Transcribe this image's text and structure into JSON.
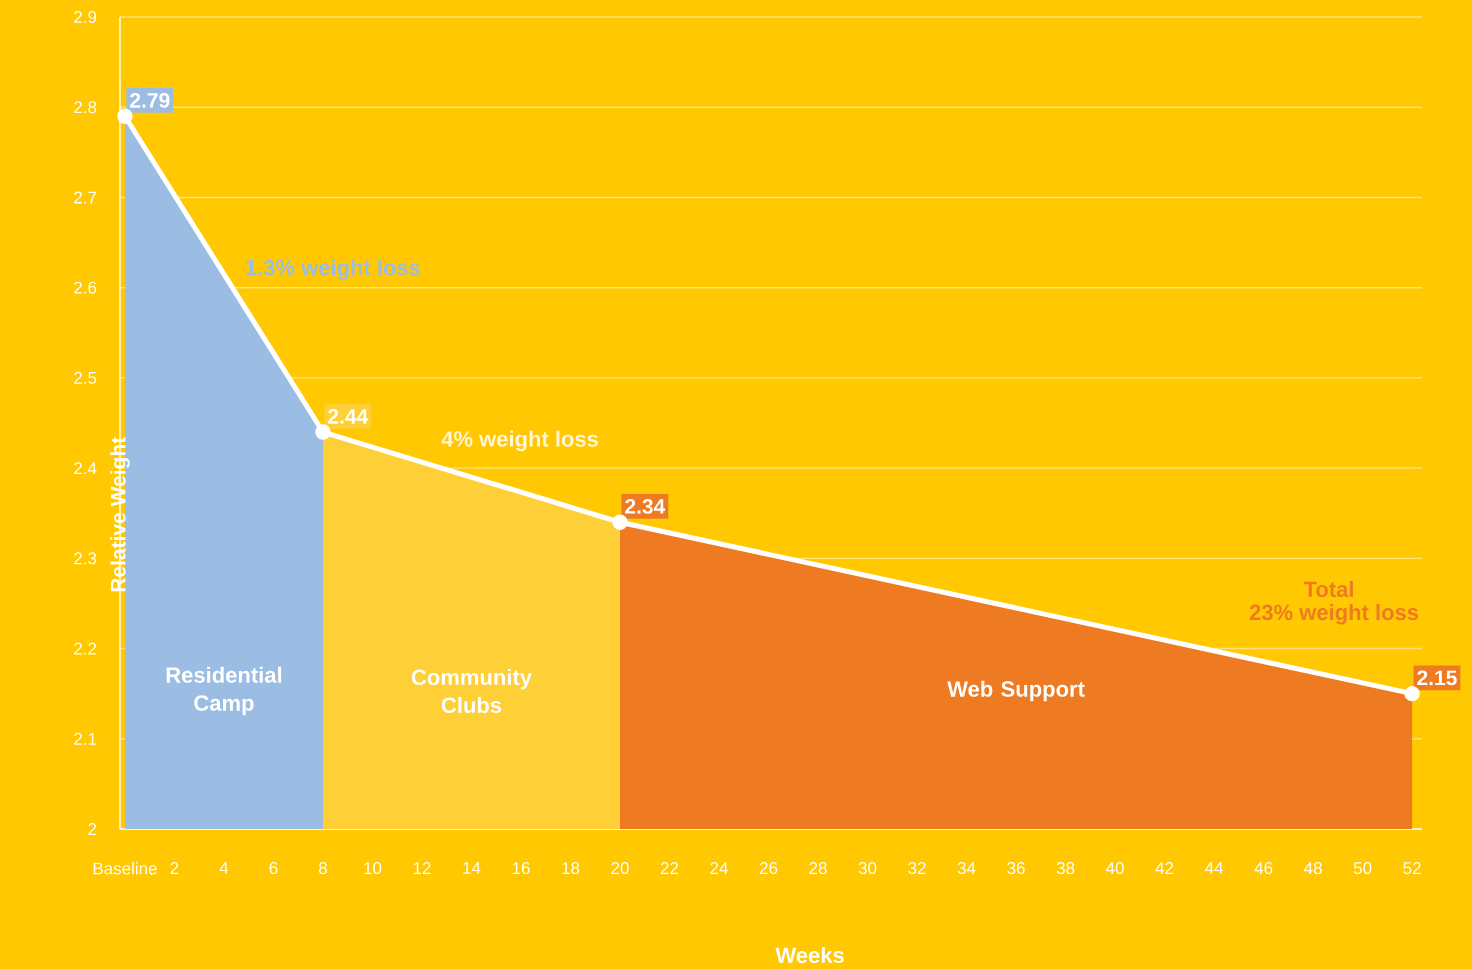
{
  "chart_data": {
    "type": "area",
    "xlabel": "Weeks",
    "ylabel": "Relative Weight",
    "xlim": [
      -0.2,
      52.4
    ],
    "xticks": [
      {
        "value": 0,
        "label": "Baseline"
      },
      2,
      4,
      6,
      8,
      10,
      12,
      14,
      16,
      18,
      20,
      22,
      24,
      26,
      28,
      30,
      32,
      34,
      36,
      38,
      40,
      42,
      44,
      46,
      48,
      50,
      52
    ],
    "ylim": [
      2,
      2.9
    ],
    "yticks": [
      2,
      2.1,
      2.2,
      2.3,
      2.4,
      2.5,
      2.6,
      2.7,
      2.8,
      2.9
    ],
    "grid": "y",
    "series": [
      {
        "name": "Residential Camp",
        "color": "#9bbde3",
        "x": [
          0,
          8
        ],
        "values": [
          2.79,
          2.44
        ]
      },
      {
        "name": "Community Clubs",
        "color": "#fecf36",
        "x": [
          8,
          20
        ],
        "values": [
          2.44,
          2.34
        ]
      },
      {
        "name": "Web Support",
        "color": "#ee7b22",
        "x": [
          20,
          52
        ],
        "values": [
          2.34,
          2.15
        ]
      },
      {
        "type": "line",
        "color": "#ffffff",
        "marker": "circle",
        "x": [
          0,
          8,
          20,
          52
        ],
        "values": [
          2.79,
          2.44,
          2.34,
          2.15
        ],
        "value_labels": [
          "2.79",
          "2.44",
          "2.34",
          "2.15"
        ]
      }
    ],
    "annotations": [
      "1.3% weight loss",
      "4% weight loss",
      "Total",
      "23% weight loss"
    ]
  }
}
